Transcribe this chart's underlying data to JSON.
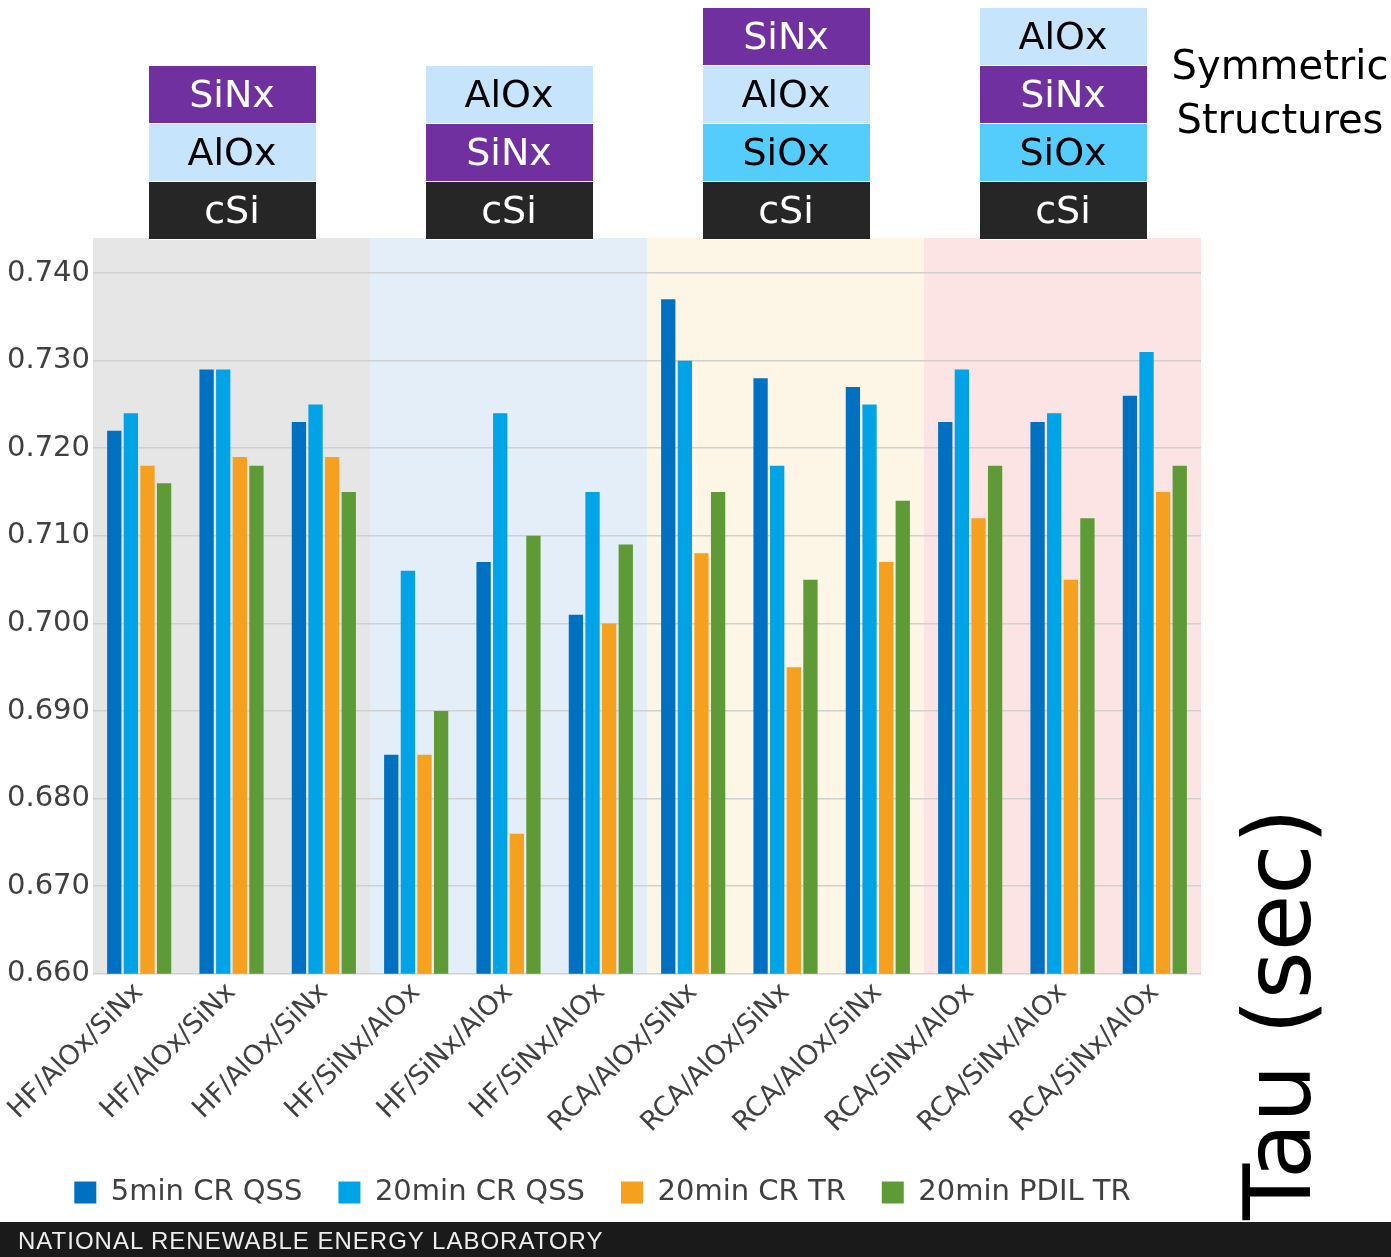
{
  "chart_data": {
    "type": "bar",
    "ylabel": "Tau (sec)",
    "categories": [
      "HF/AlOx/SiNx",
      "HF/AlOx/SiNx",
      "HF/AlOx/SiNx",
      "HF/SiNx/AlOx",
      "HF/SiNx/AlOx",
      "HF/SiNx/AlOx",
      "RCA/AlOx/SiNx",
      "RCA/AlOx/SiNx",
      "RCA/AlOx/SiNx",
      "RCA/SiNx/AlOx",
      "RCA/SiNx/AlOx",
      "RCA/SiNx/AlOx"
    ],
    "series": [
      {
        "name": "5min CR QSS",
        "color": "#0070c0",
        "values": [
          0.722,
          0.729,
          0.723,
          0.685,
          0.707,
          0.701,
          0.737,
          0.728,
          0.727,
          0.723,
          0.723,
          0.726
        ]
      },
      {
        "name": "20min CR QSS",
        "color": "#00a3e6",
        "values": [
          0.724,
          0.729,
          0.725,
          0.706,
          0.724,
          0.715,
          0.73,
          0.718,
          0.725,
          0.729,
          0.724,
          0.731
        ]
      },
      {
        "name": "20min CR TR",
        "color": "#f5a11f",
        "values": [
          0.718,
          0.719,
          0.719,
          0.685,
          0.676,
          0.7,
          0.708,
          0.695,
          0.707,
          0.712,
          0.705,
          0.715
        ]
      },
      {
        "name": "20min PDIL TR",
        "color": "#5e9b36",
        "values": [
          0.716,
          0.718,
          0.715,
          0.69,
          0.71,
          0.709,
          0.715,
          0.705,
          0.714,
          0.718,
          0.712,
          0.718
        ]
      }
    ],
    "ylim": [
      0.66,
      0.744
    ],
    "yticks": [
      {
        "value": 0.66,
        "label": "0.660"
      },
      {
        "value": 0.67,
        "label": "0.670"
      },
      {
        "value": 0.68,
        "label": "0.680"
      },
      {
        "value": 0.69,
        "label": "0.690"
      },
      {
        "value": 0.7,
        "label": "0.700"
      },
      {
        "value": 0.71,
        "label": "0.710"
      },
      {
        "value": 0.72,
        "label": "0.720"
      },
      {
        "value": 0.73,
        "label": "0.730"
      },
      {
        "value": 0.74,
        "label": "0.740"
      }
    ],
    "grid": "y",
    "legend": "bottom",
    "annotations": [
      "SiNx",
      "AlOx",
      "cSi",
      "AlOx",
      "SiNx",
      "cSi",
      "SiNx",
      "AlOx",
      "SiOx",
      "cSi",
      "AlOx",
      "SiNx",
      "SiOx",
      "cSi",
      "Symmetric Structures",
      "NATIONAL RENEWABLE ENERGY LABORATORY"
    ]
  }
}
